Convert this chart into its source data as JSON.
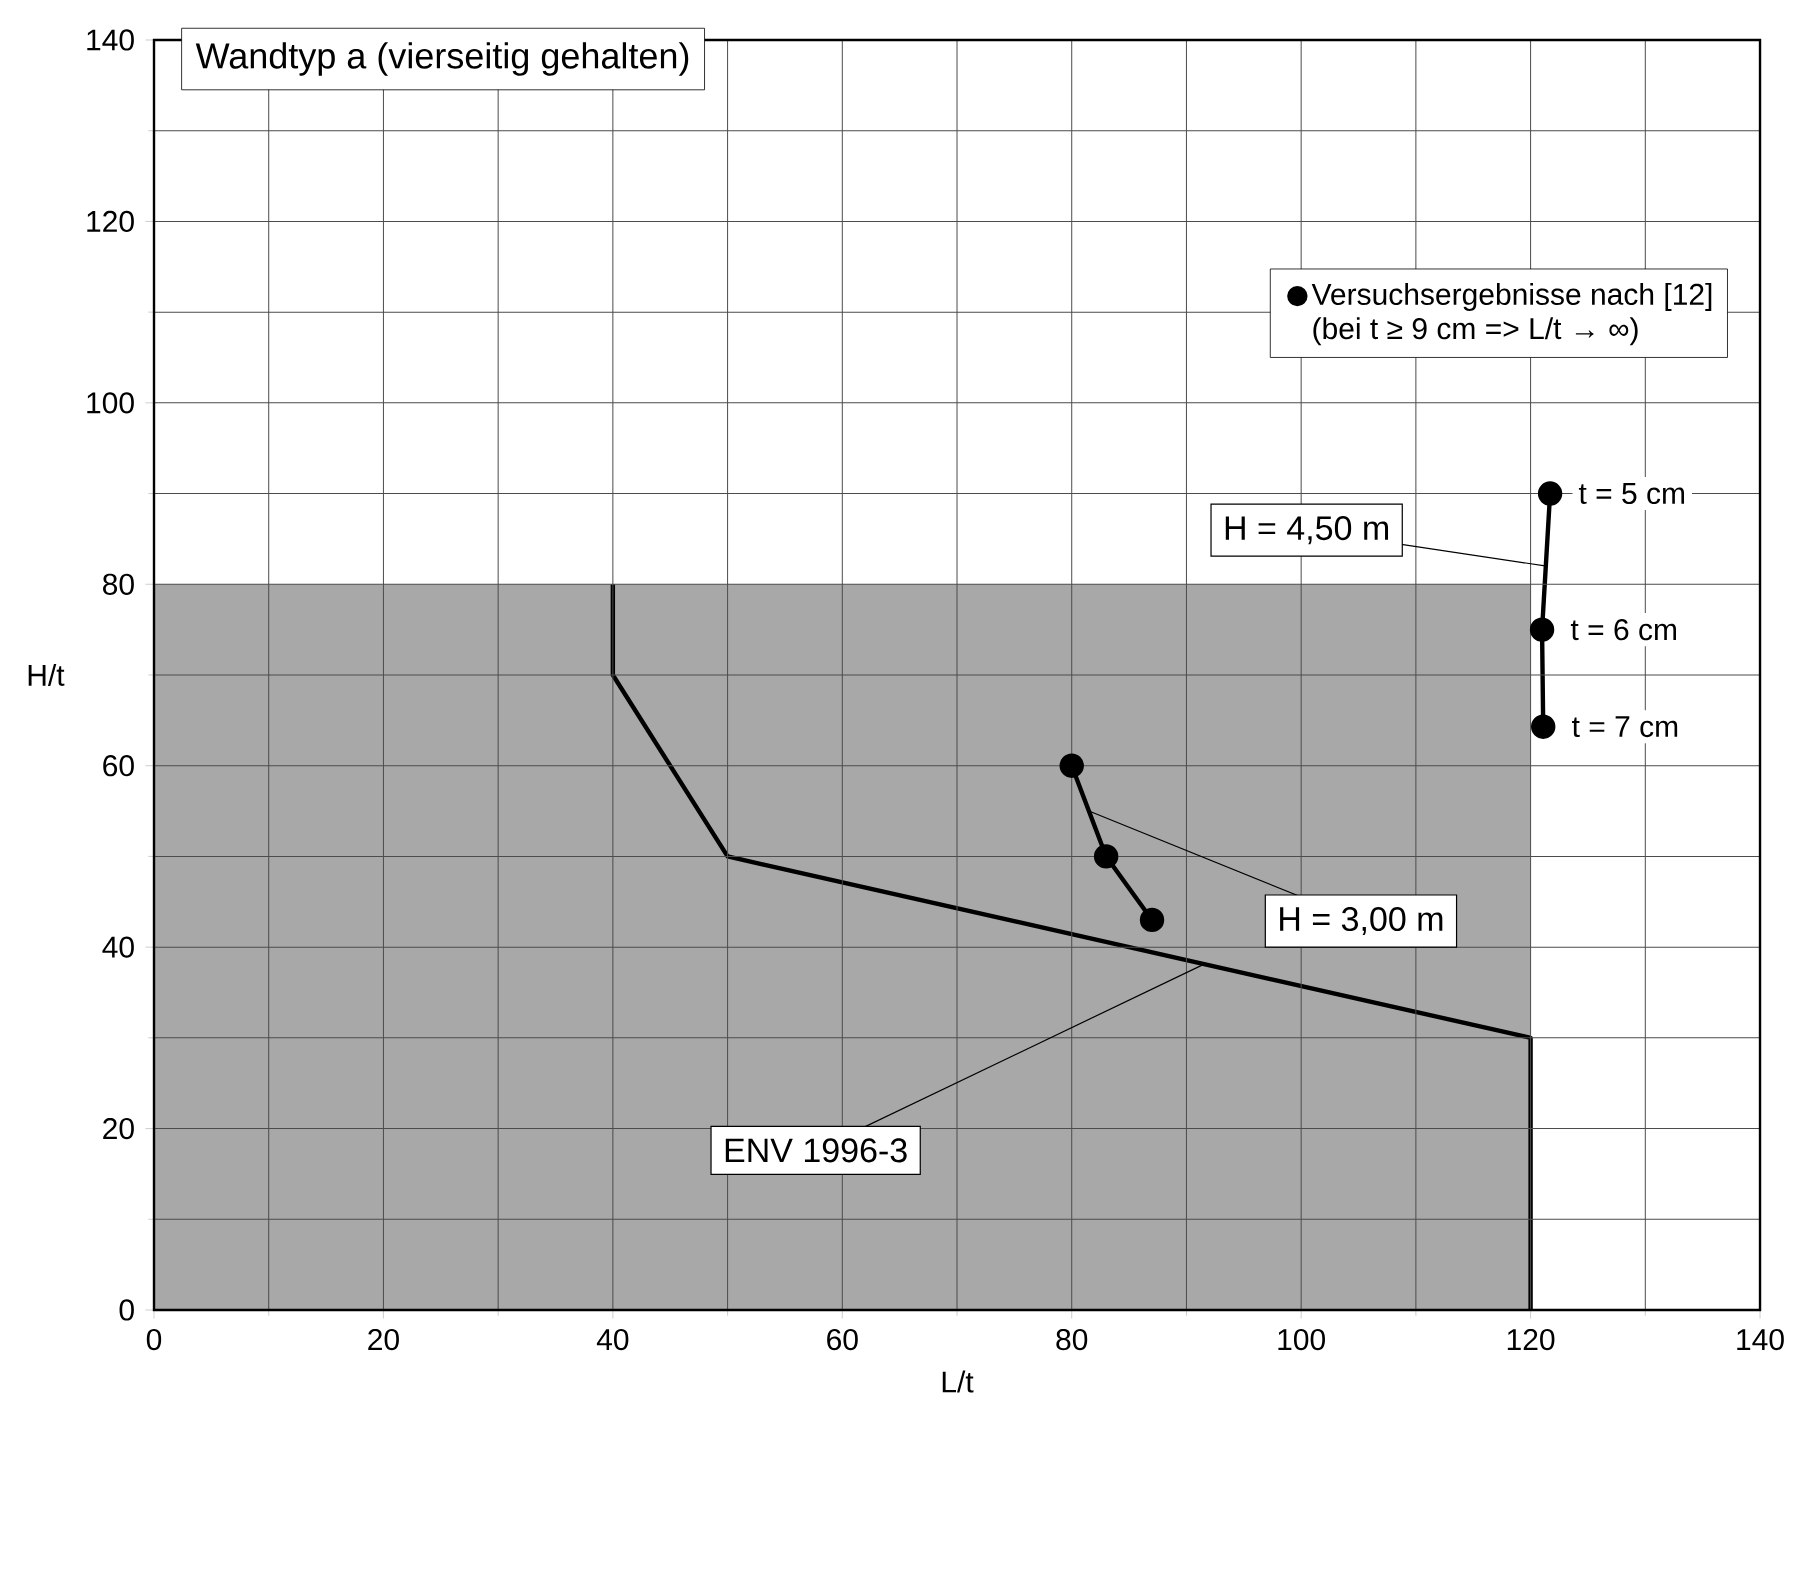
{
  "chart_data": {
    "type": "line",
    "title": "Wandtyp a (vierseitig gehalten)",
    "xlabel": "L/t",
    "ylabel": "H/t",
    "xlim": [
      0,
      140
    ],
    "ylim": [
      0,
      140
    ],
    "xticks": [
      0,
      20,
      40,
      60,
      80,
      100,
      120,
      140
    ],
    "yticks": [
      0,
      20,
      40,
      60,
      80,
      100,
      120,
      140
    ],
    "grid": true,
    "legend": "top right",
    "series": [
      {
        "type": "area",
        "color": "#a8a8a8",
        "x": [
          0,
          120
        ],
        "values": [
          80,
          80
        ]
      },
      {
        "type": "line",
        "color": "#000000",
        "x": [
          40,
          40,
          50,
          120,
          120
        ],
        "values": [
          80,
          70,
          50,
          30,
          0
        ],
        "marker": "none"
      },
      {
        "name": "Versuchsergebnisse nach [12]",
        "color": "#000000",
        "x": [
          80,
          83,
          87
        ],
        "values": [
          60,
          50,
          43
        ],
        "marker": "circle"
      },
      {
        "color": "#000000",
        "x": [
          121.7,
          121,
          121.1
        ],
        "values": [
          90,
          75,
          64.3
        ],
        "marker": "circle"
      }
    ],
    "annotations": [
      {
        "text": "ENV 1996-3",
        "x": 91.5,
        "y": 38.1
      },
      {
        "text": "H = 3,00 m",
        "x": 81.5,
        "y": 55
      },
      {
        "text": "H = 4,50 m",
        "x": 121.4,
        "y": 82
      },
      {
        "text": "t = 5 cm",
        "x": 121.7,
        "y": 90
      },
      {
        "text": "t = 6 cm",
        "x": 121,
        "y": 75
      },
      {
        "text": "t = 7 cm",
        "x": 121.1,
        "y": 64.3
      },
      "(bei t ≥ 9 cm  =>  L/t → ∞)"
    ]
  }
}
